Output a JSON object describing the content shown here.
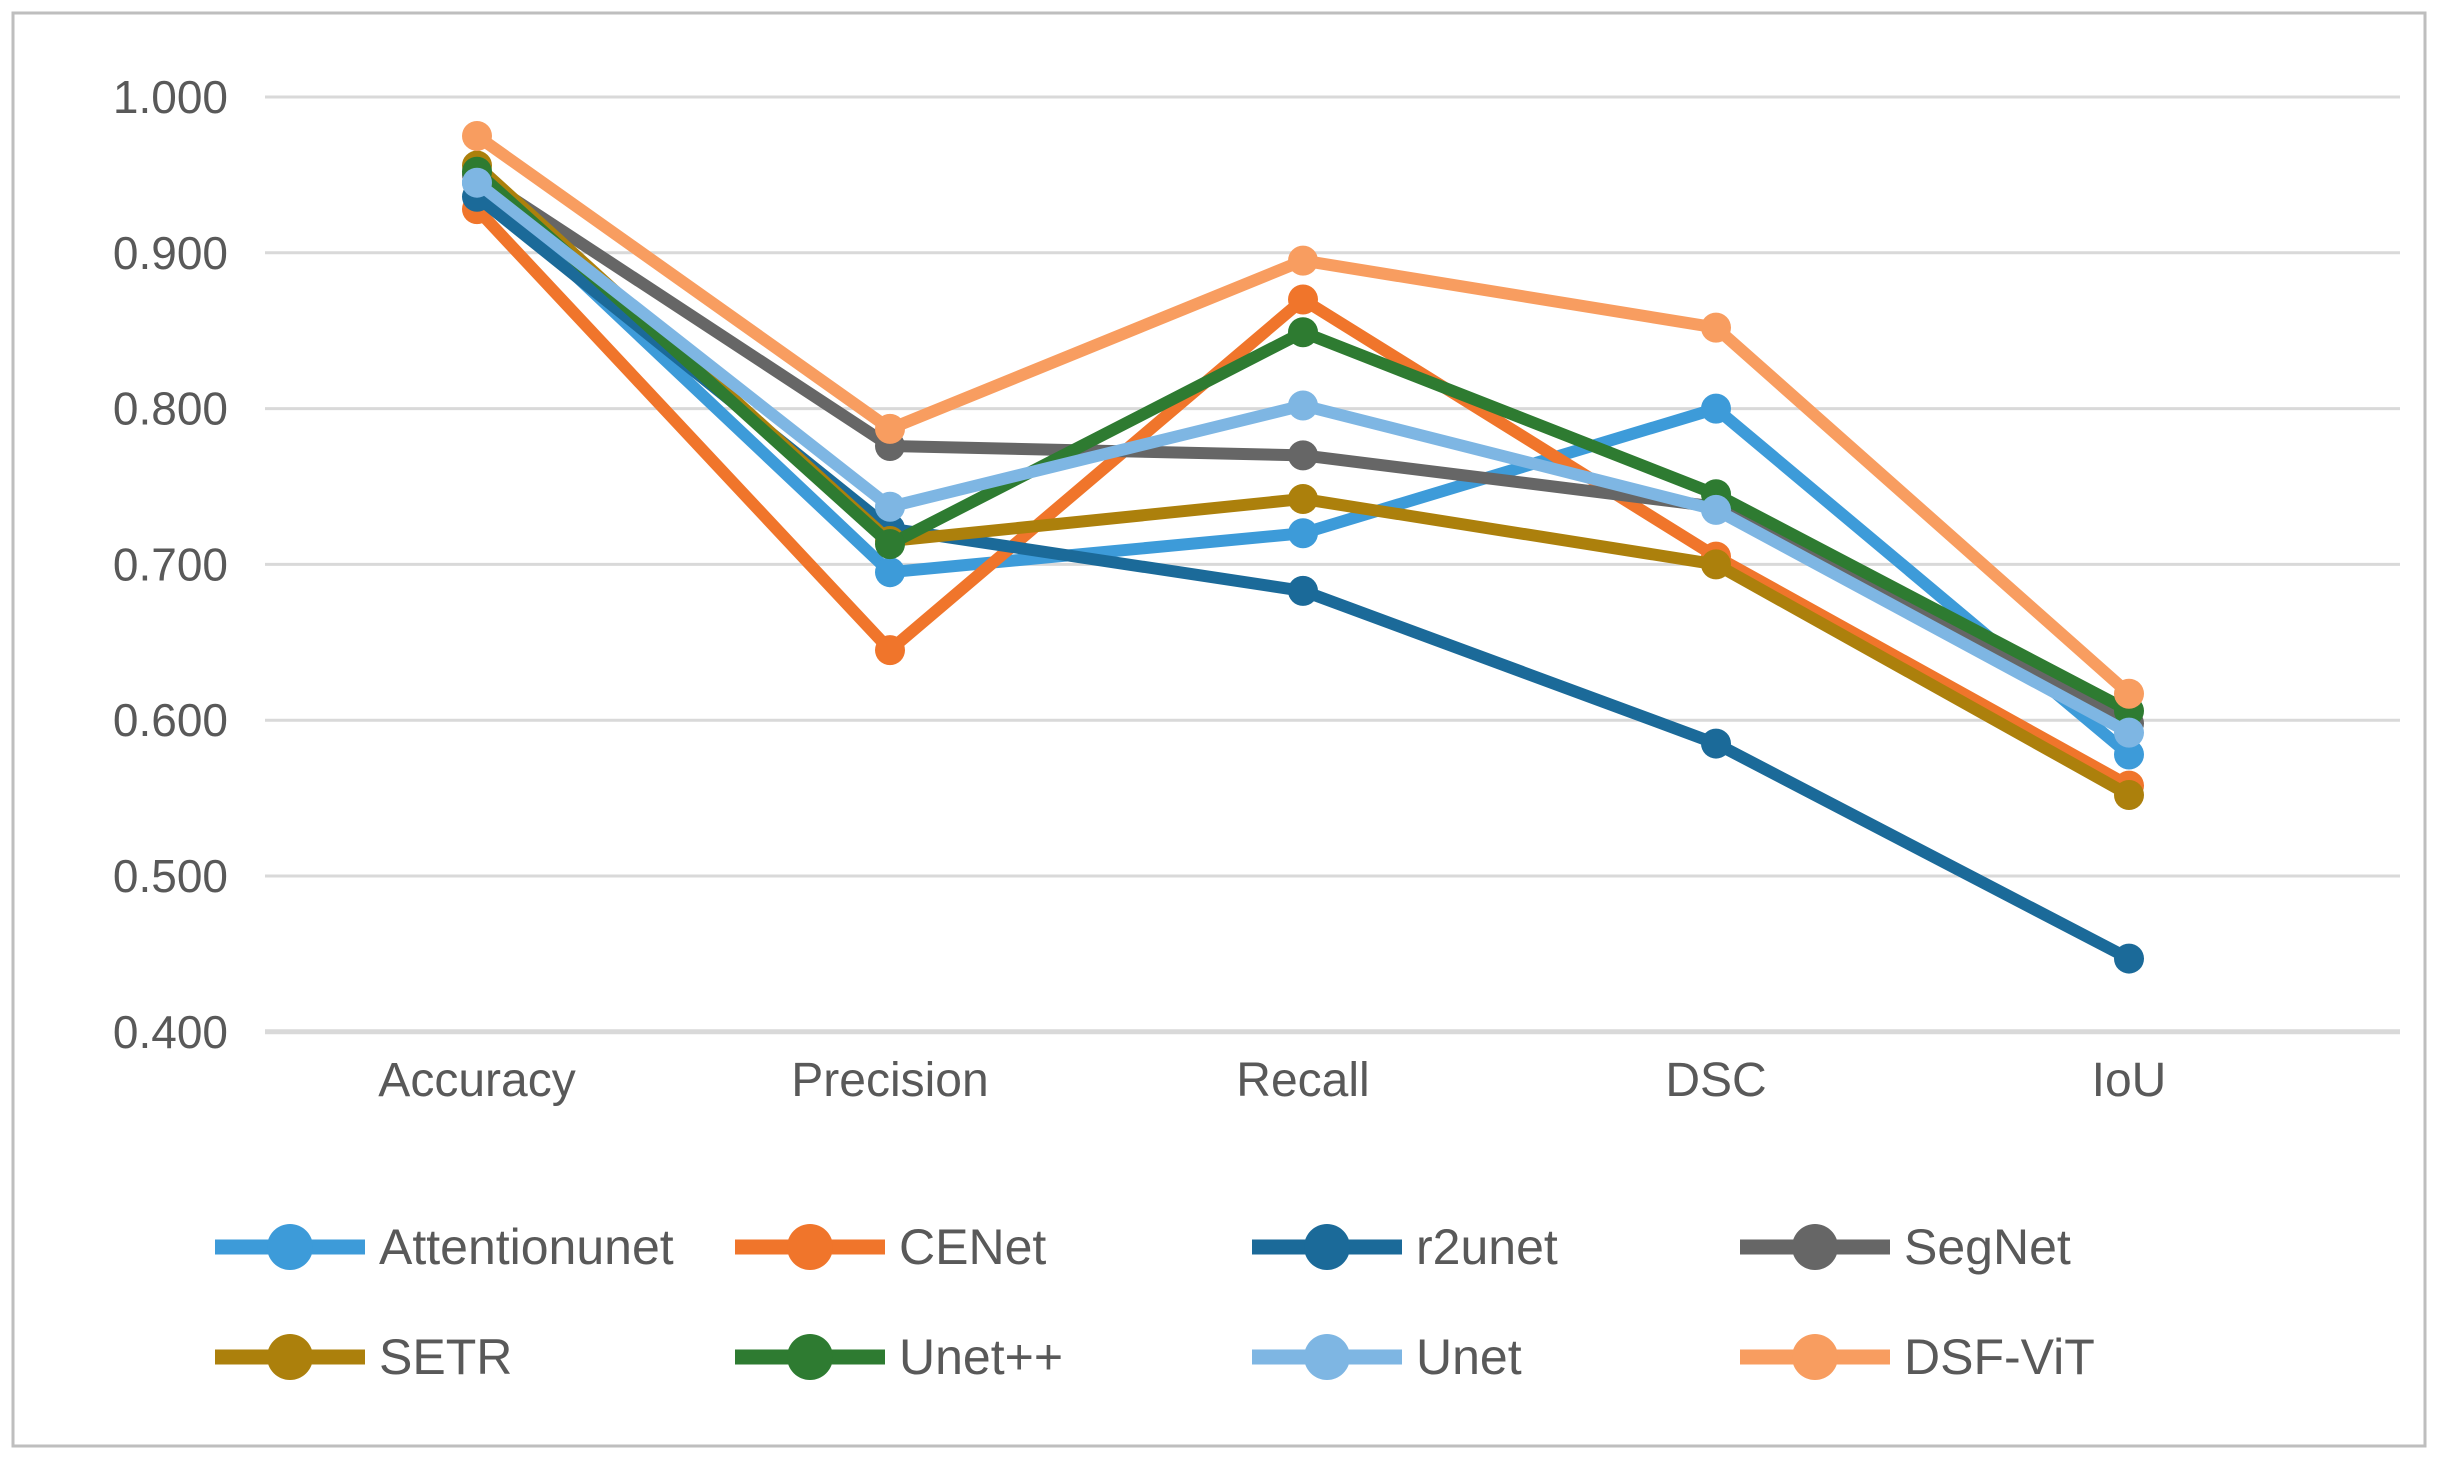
{
  "figure": {
    "background": "#FFFFFF",
    "border_color": "#BEBEBE",
    "text_color": "#595959",
    "gridline_color": "#D9D9D9"
  },
  "chart_data": {
    "type": "line",
    "title": "",
    "xlabel": "",
    "ylabel": "",
    "grid": true,
    "legend_position": "bottom",
    "categories": [
      "Accuracy",
      "Precision",
      "Recall",
      "DSC",
      "IoU"
    ],
    "y_axis": {
      "min": 0.4,
      "max": 1.0,
      "tick_step": 0.1,
      "tick_values": [
        1.0,
        0.9,
        0.8,
        0.7,
        0.6,
        0.5,
        0.4
      ],
      "tick_labels": [
        "1.000",
        "0.900",
        "0.800",
        "0.700",
        "0.600",
        "0.500",
        "0.400"
      ]
    },
    "series": [
      {
        "name": "Attentionunet",
        "color": "#3D9BD9",
        "values": [
          0.945,
          0.695,
          0.72,
          0.8,
          0.578
        ]
      },
      {
        "name": "CENet",
        "color": "#F0752B",
        "values": [
          0.928,
          0.645,
          0.87,
          0.705,
          0.558
        ]
      },
      {
        "name": "r2unet",
        "color": "#1B6A99",
        "values": [
          0.936,
          0.723,
          0.683,
          0.585,
          0.447
        ]
      },
      {
        "name": "SegNet",
        "color": "#666666",
        "values": [
          0.95,
          0.776,
          0.77,
          0.737,
          0.598
        ]
      },
      {
        "name": "SETR",
        "color": "#AC800C",
        "values": [
          0.956,
          0.715,
          0.742,
          0.7,
          0.552
        ]
      },
      {
        "name": "Unet++",
        "color": "#2E7B31",
        "values": [
          0.952,
          0.713,
          0.849,
          0.745,
          0.606
        ]
      },
      {
        "name": "Unet",
        "color": "#7EB6E3",
        "values": [
          0.945,
          0.737,
          0.802,
          0.735,
          0.592
        ]
      },
      {
        "name": "DSF-ViT",
        "color": "#F89D60",
        "values": [
          0.975,
          0.787,
          0.895,
          0.852,
          0.617
        ]
      }
    ]
  }
}
